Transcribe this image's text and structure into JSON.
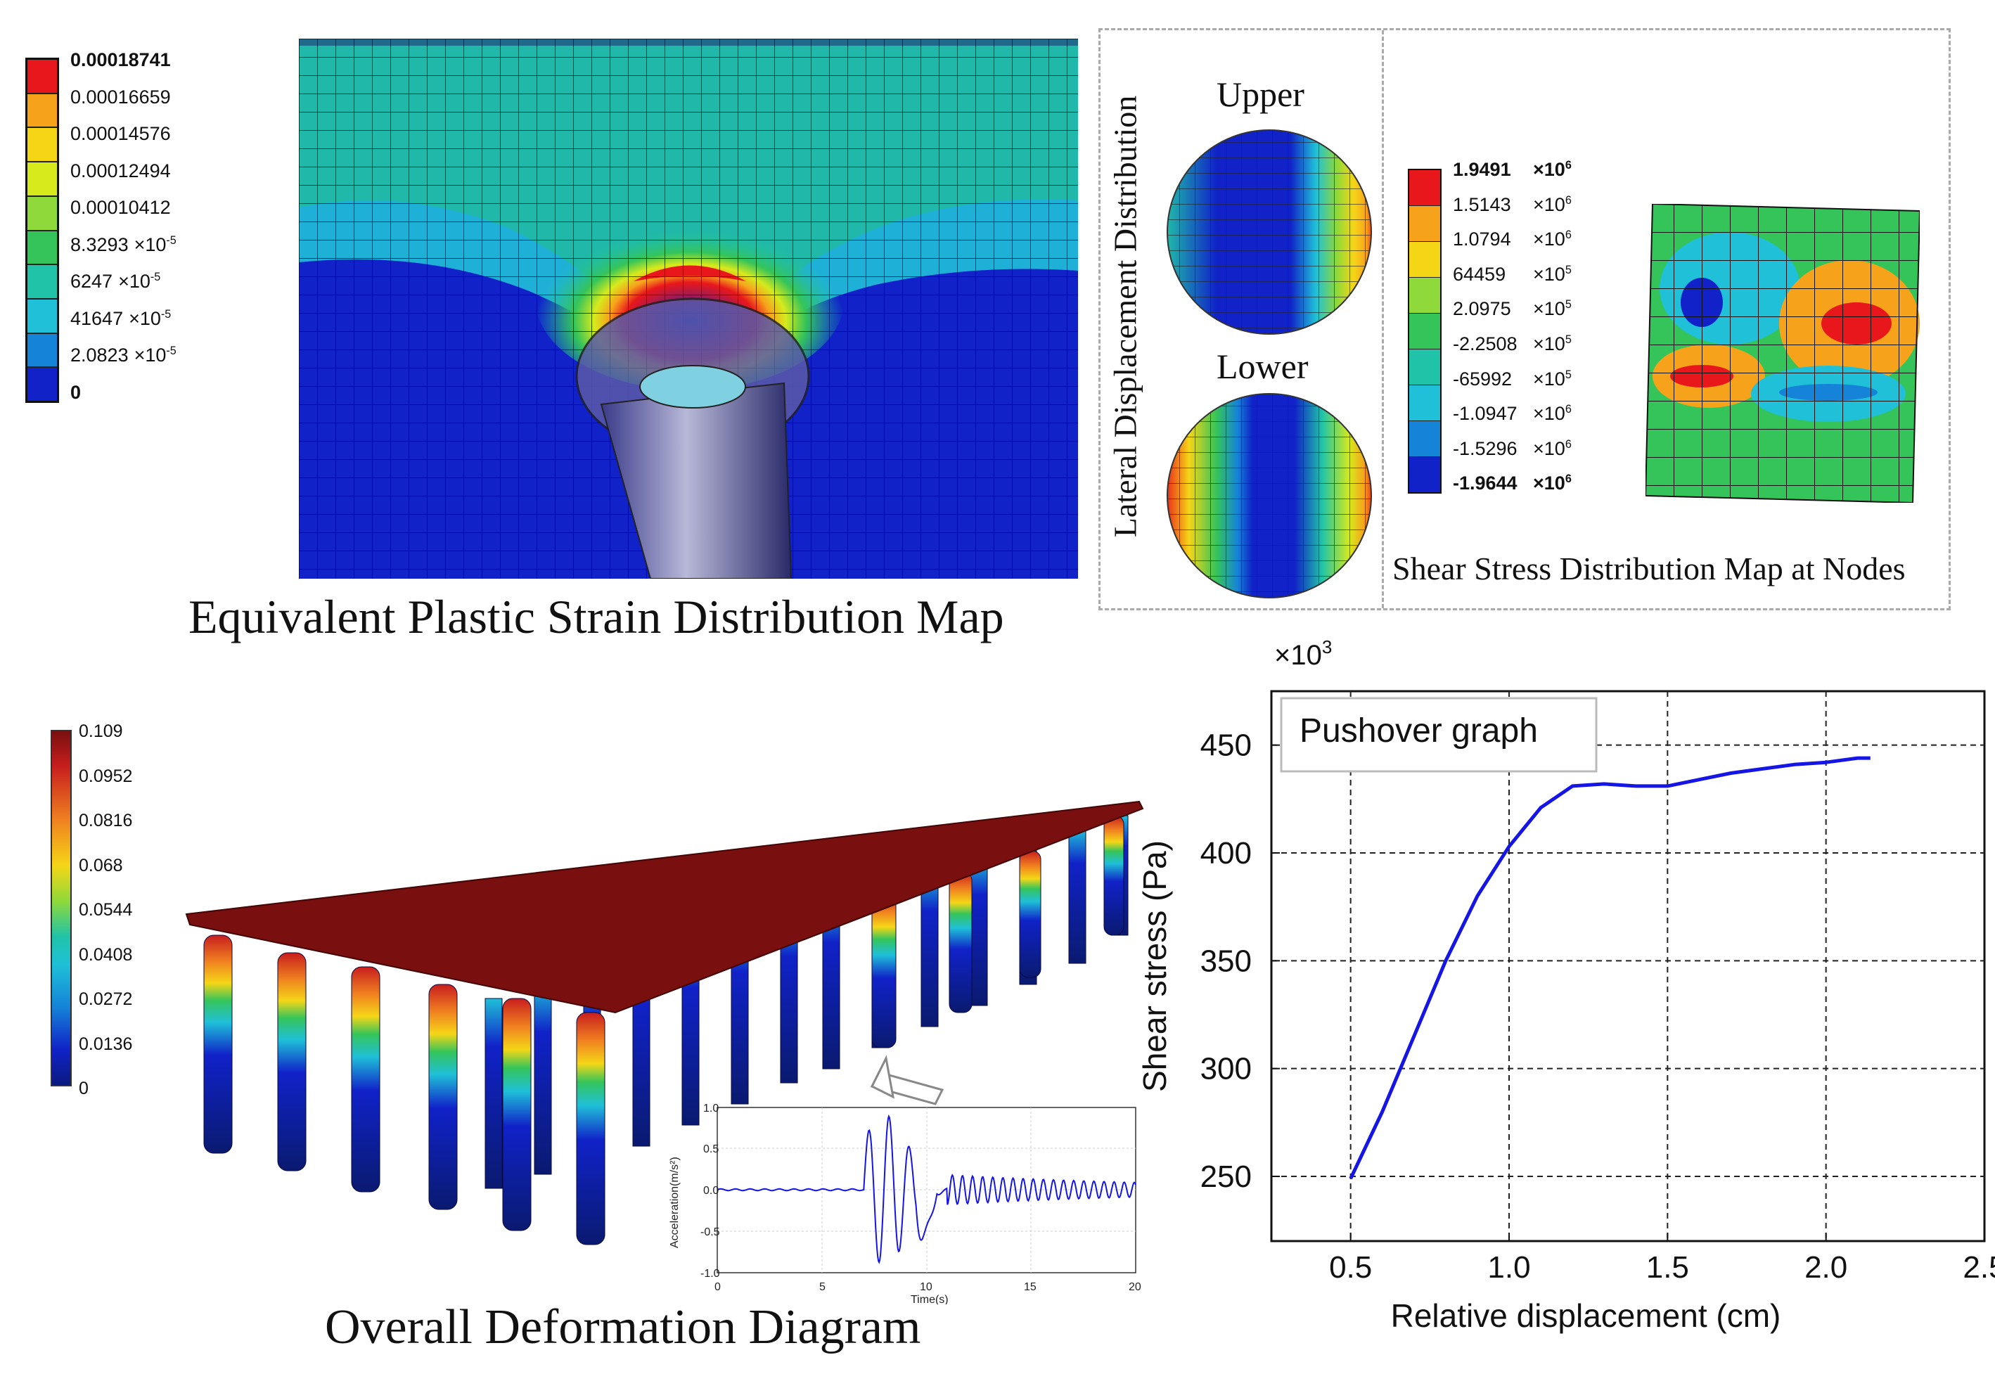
{
  "panel1": {
    "caption": "Equivalent Plastic Strain Distribution Map",
    "legend": [
      {
        "mant": "0.00018741",
        "exp": ""
      },
      {
        "mant": "0.00016659",
        "exp": ""
      },
      {
        "mant": "0.00014576",
        "exp": ""
      },
      {
        "mant": "0.00012494",
        "exp": ""
      },
      {
        "mant": "0.00010412",
        "exp": ""
      },
      {
        "mant": "8.3293",
        "exp": "-5"
      },
      {
        "mant": "6247",
        "exp": "-5"
      },
      {
        "mant": "41647",
        "exp": "-5"
      },
      {
        "mant": "2.0823",
        "exp": "-5"
      },
      {
        "mant": "0",
        "exp": ""
      }
    ],
    "times": "×10",
    "colors": [
      "#e8171c",
      "#f7a21b",
      "#f5d617",
      "#d6ea1c",
      "#8fd93a",
      "#35c45a",
      "#20c3a8",
      "#1fc0d8",
      "#1583d8",
      "#1022c8"
    ]
  },
  "panel2": {
    "vertical_label": "Lateral Displacement Distribution",
    "upper": "Upper",
    "lower": "Lower",
    "caption": "Shear Stress Distribution Map at Nodes",
    "times": "×10",
    "legend": [
      {
        "mant": "1.9491",
        "exp": "6"
      },
      {
        "mant": "1.5143",
        "exp": "6"
      },
      {
        "mant": "1.0794",
        "exp": "6"
      },
      {
        "mant": "64459",
        "exp": "5"
      },
      {
        "mant": "2.0975",
        "exp": "5"
      },
      {
        "mant": "-2.2508",
        "exp": "5"
      },
      {
        "mant": "-65992",
        "exp": "5"
      },
      {
        "mant": "-1.0947",
        "exp": "6"
      },
      {
        "mant": "-1.5296",
        "exp": "6"
      },
      {
        "mant": "-1.9644",
        "exp": "6"
      }
    ],
    "colors": [
      "#e8171c",
      "#f7a21b",
      "#f5d617",
      "#8fd93a",
      "#35c45a",
      "#20c3a8",
      "#1fc0d8",
      "#1583d8",
      "#1022c8"
    ]
  },
  "panel3": {
    "caption": "Overall Deformation Diagram",
    "legend": [
      "0.109",
      "0.0952",
      "0.0816",
      "0.068",
      "0.0544",
      "0.0408",
      "0.0272",
      "0.0136",
      "0"
    ],
    "inset": {
      "ylabel": "Acceleration(m/s²)",
      "xlabel": "Time(s)",
      "xticks": [
        "0",
        "5",
        "10",
        "15",
        "20"
      ],
      "yticks": [
        "1.0",
        "0.5",
        "0.0",
        "-0.5",
        "-1.0"
      ]
    }
  },
  "chart_data": {
    "type": "line",
    "title": "Pushover graph",
    "xlabel": "Relative displacement (cm)",
    "ylabel": "Shear stress (Pa)",
    "y_multiplier": "×10",
    "y_multiplier_exp": "3",
    "xlim": [
      0.25,
      2.5
    ],
    "ylim": [
      220,
      475
    ],
    "xticks": [
      0.5,
      1.0,
      1.5,
      2.0,
      2.5
    ],
    "xtick_labels": [
      "0.5",
      "1.0",
      "1.5",
      "2.0",
      "2.5"
    ],
    "yticks": [
      250,
      300,
      350,
      400,
      450
    ],
    "ytick_labels": [
      "250",
      "300",
      "350",
      "400",
      "450"
    ],
    "series": [
      {
        "name": "Pushover",
        "color": "#1515e6",
        "x": [
          0.5,
          0.6,
          0.7,
          0.8,
          0.9,
          1.0,
          1.1,
          1.2,
          1.3,
          1.4,
          1.5,
          1.6,
          1.7,
          1.8,
          1.9,
          2.0,
          2.1,
          2.14
        ],
        "y": [
          249,
          280,
          315,
          350,
          380,
          403,
          421,
          431,
          432,
          431,
          431,
          434,
          437,
          439,
          441,
          442,
          444,
          444
        ]
      }
    ]
  }
}
